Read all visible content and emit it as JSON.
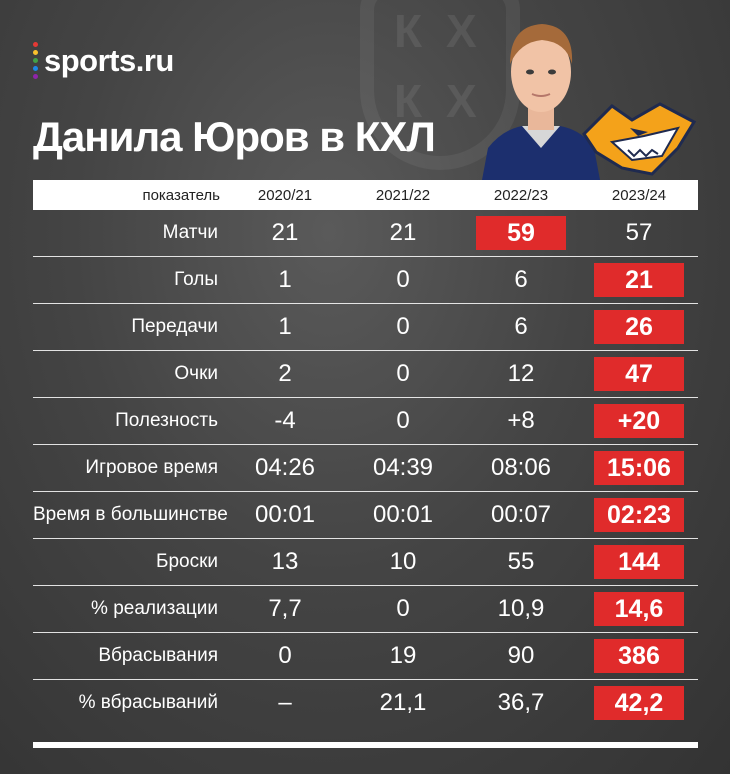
{
  "brand": {
    "name": "sports.ru",
    "dot_colors": [
      "#e53935",
      "#fbc02d",
      "#43a047",
      "#1e88e5",
      "#8e24aa"
    ]
  },
  "title": "Данила Юров в КХЛ",
  "table": {
    "headers": [
      "показатель",
      "2020/21",
      "2021/22",
      "2022/23",
      "2023/24"
    ],
    "rows": [
      {
        "metric": "Матчи",
        "values": [
          "21",
          "21",
          "59",
          "57"
        ],
        "highlight": 2
      },
      {
        "metric": "Голы",
        "values": [
          "1",
          "0",
          "6",
          "21"
        ],
        "highlight": 3
      },
      {
        "metric": "Передачи",
        "values": [
          "1",
          "0",
          "6",
          "26"
        ],
        "highlight": 3
      },
      {
        "metric": "Очки",
        "values": [
          "2",
          "0",
          "12",
          "47"
        ],
        "highlight": 3
      },
      {
        "metric": "Полезность",
        "values": [
          "-4",
          "0",
          "+8",
          "+20"
        ],
        "highlight": 3
      },
      {
        "metric": "Игровое время",
        "values": [
          "04:26",
          "04:39",
          "08:06",
          "15:06"
        ],
        "highlight": 3
      },
      {
        "metric": "Время в большинстве",
        "values": [
          "00:01",
          "00:01",
          "00:07",
          "02:23"
        ],
        "highlight": 3
      },
      {
        "metric": "Броски",
        "values": [
          "13",
          "10",
          "55",
          "144"
        ],
        "highlight": 3
      },
      {
        "metric": "% реализации",
        "values": [
          "7,7",
          "0",
          "10,9",
          "14,6"
        ],
        "highlight": 3
      },
      {
        "metric": "Вбрасывания",
        "values": [
          "0",
          "19",
          "90",
          "386"
        ],
        "highlight": 3
      },
      {
        "metric": "% вбрасываний",
        "values": [
          "–",
          "21,1",
          "36,7",
          "42,2"
        ],
        "highlight": 3
      }
    ]
  },
  "colors": {
    "highlight": "#e02b2b",
    "background": "#444444"
  },
  "icons": {
    "player": "player-photo",
    "club": "metallurg-fox-logo",
    "league": "khl-logo-watermark"
  }
}
